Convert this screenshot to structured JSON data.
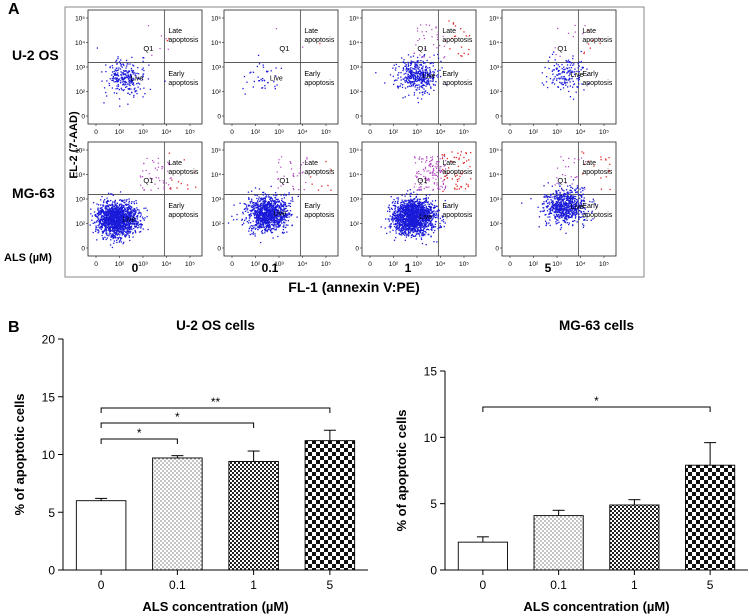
{
  "panel_a": {
    "label": "A",
    "y_axis_label": "FL-2 (7-AAD)",
    "x_axis_label": "FL-1 (annexin V:PE)",
    "conc_axis_label": "ALS (µM)",
    "row_labels": [
      "U-2 OS",
      "MG-63"
    ],
    "column_labels": [
      "0",
      "0.1",
      "1",
      "5"
    ],
    "quadrant_labels": {
      "q1": "Q1",
      "late1": "Late",
      "late2": "apoptosis",
      "early1": "Early",
      "early2": "apoptosis",
      "live": "Live"
    },
    "x_ticks": [
      "0",
      "10²",
      "10³",
      "10⁴",
      "10⁵"
    ],
    "y_ticks": [
      "10⁵",
      "10⁴",
      "10³",
      "10²",
      "0"
    ],
    "colors": {
      "live": "#1a1ad8",
      "q1": "#b040c0",
      "late": "#e02a2a"
    }
  },
  "panel_b": {
    "label": "B"
  },
  "chart_data": [
    {
      "type": "bar",
      "title": "U-2 OS cells",
      "xlabel": "ALS concentration (µM)",
      "ylabel": "% of apoptotic cells",
      "categories": [
        "0",
        "0.1",
        "1",
        "5"
      ],
      "values": [
        6.0,
        9.7,
        9.4,
        11.2
      ],
      "errors": [
        0.2,
        0.2,
        0.9,
        0.9
      ],
      "patterns": [
        "none",
        "dots",
        "fine-check",
        "check"
      ],
      "ylim": [
        0,
        20
      ],
      "yticks": [
        0,
        5,
        10,
        15,
        20
      ],
      "significance": [
        {
          "from": 0,
          "to": 1,
          "label": "*"
        },
        {
          "from": 0,
          "to": 2,
          "label": "*"
        },
        {
          "from": 0,
          "to": 3,
          "label": "**"
        }
      ]
    },
    {
      "type": "bar",
      "title": "MG-63 cells",
      "xlabel": "ALS concentration (µM)",
      "ylabel": "% of apoptotic cells",
      "categories": [
        "0",
        "0.1",
        "1",
        "5"
      ],
      "values": [
        2.1,
        4.1,
        4.9,
        7.9
      ],
      "errors": [
        0.4,
        0.4,
        0.4,
        1.7
      ],
      "patterns": [
        "none",
        "dots",
        "fine-check",
        "check"
      ],
      "ylim": [
        0,
        15
      ],
      "yticks": [
        0,
        5,
        10,
        15
      ],
      "significance": [
        {
          "from": 0,
          "to": 3,
          "label": "*"
        }
      ]
    }
  ]
}
